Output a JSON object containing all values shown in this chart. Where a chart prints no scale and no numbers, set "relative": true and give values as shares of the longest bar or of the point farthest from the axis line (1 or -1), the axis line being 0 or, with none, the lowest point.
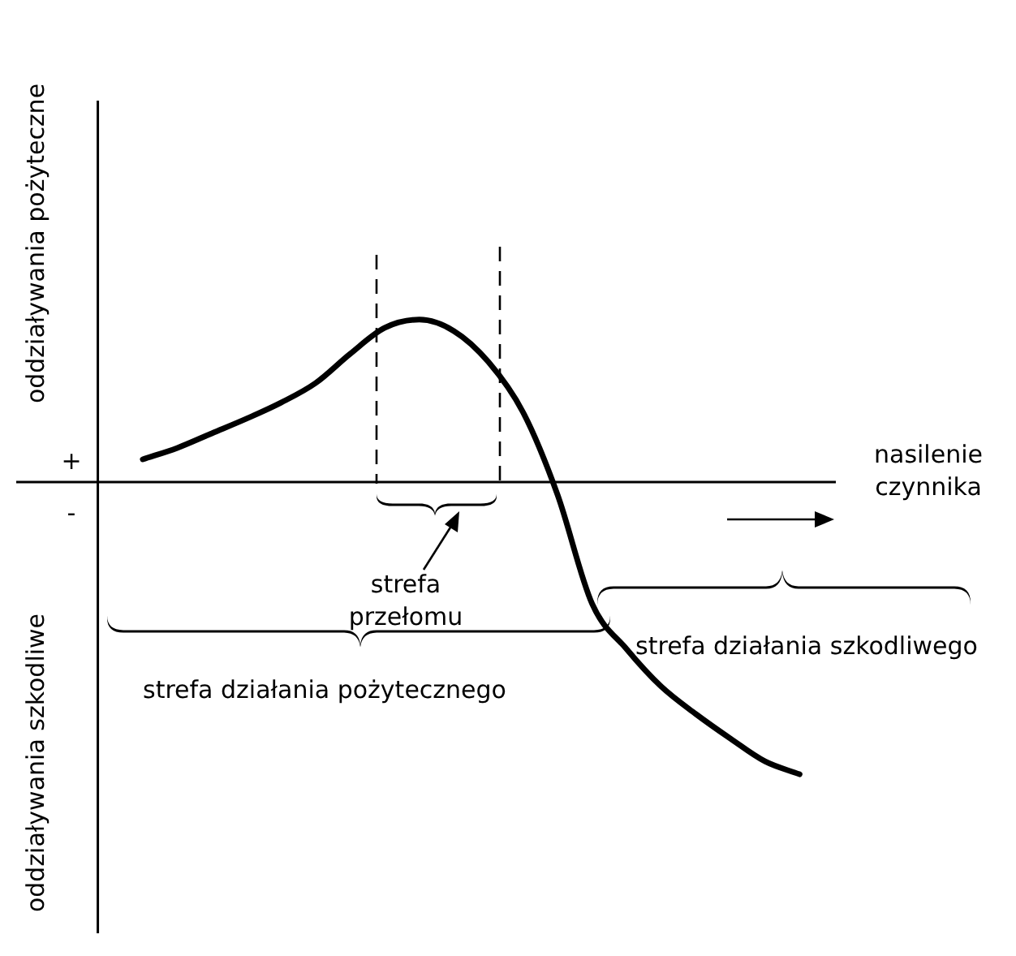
{
  "chart_data": {
    "type": "line",
    "relative": true,
    "marker": "none",
    "line_style": "solid",
    "ylabel": "oddziaływania pożyteczne",
    "xlabel": "nasilenie czynnika",
    "annotations": [
      "oddziaływania szkodliwe",
      "+",
      "-",
      "strefa przełomu",
      "strefa działania pożytecznego",
      "strefa działania szkodliwego"
    ],
    "categories": [
      null,
      null,
      null,
      null,
      null,
      null,
      null,
      null,
      null,
      null,
      null,
      null,
      null,
      null,
      null,
      null,
      null,
      null,
      null,
      null
    ],
    "series": [
      {
        "color": "#000000",
        "values": [
          0.078,
          0.117,
          0.167,
          0.217,
          0.272,
          0.339,
          0.439,
          0.528,
          0.556,
          0.517,
          0.411,
          0.239,
          -0.044,
          -0.417,
          -0.572,
          -0.7,
          -0.794,
          -0.878,
          -0.956,
          -1
        ]
      }
    ]
  }
}
